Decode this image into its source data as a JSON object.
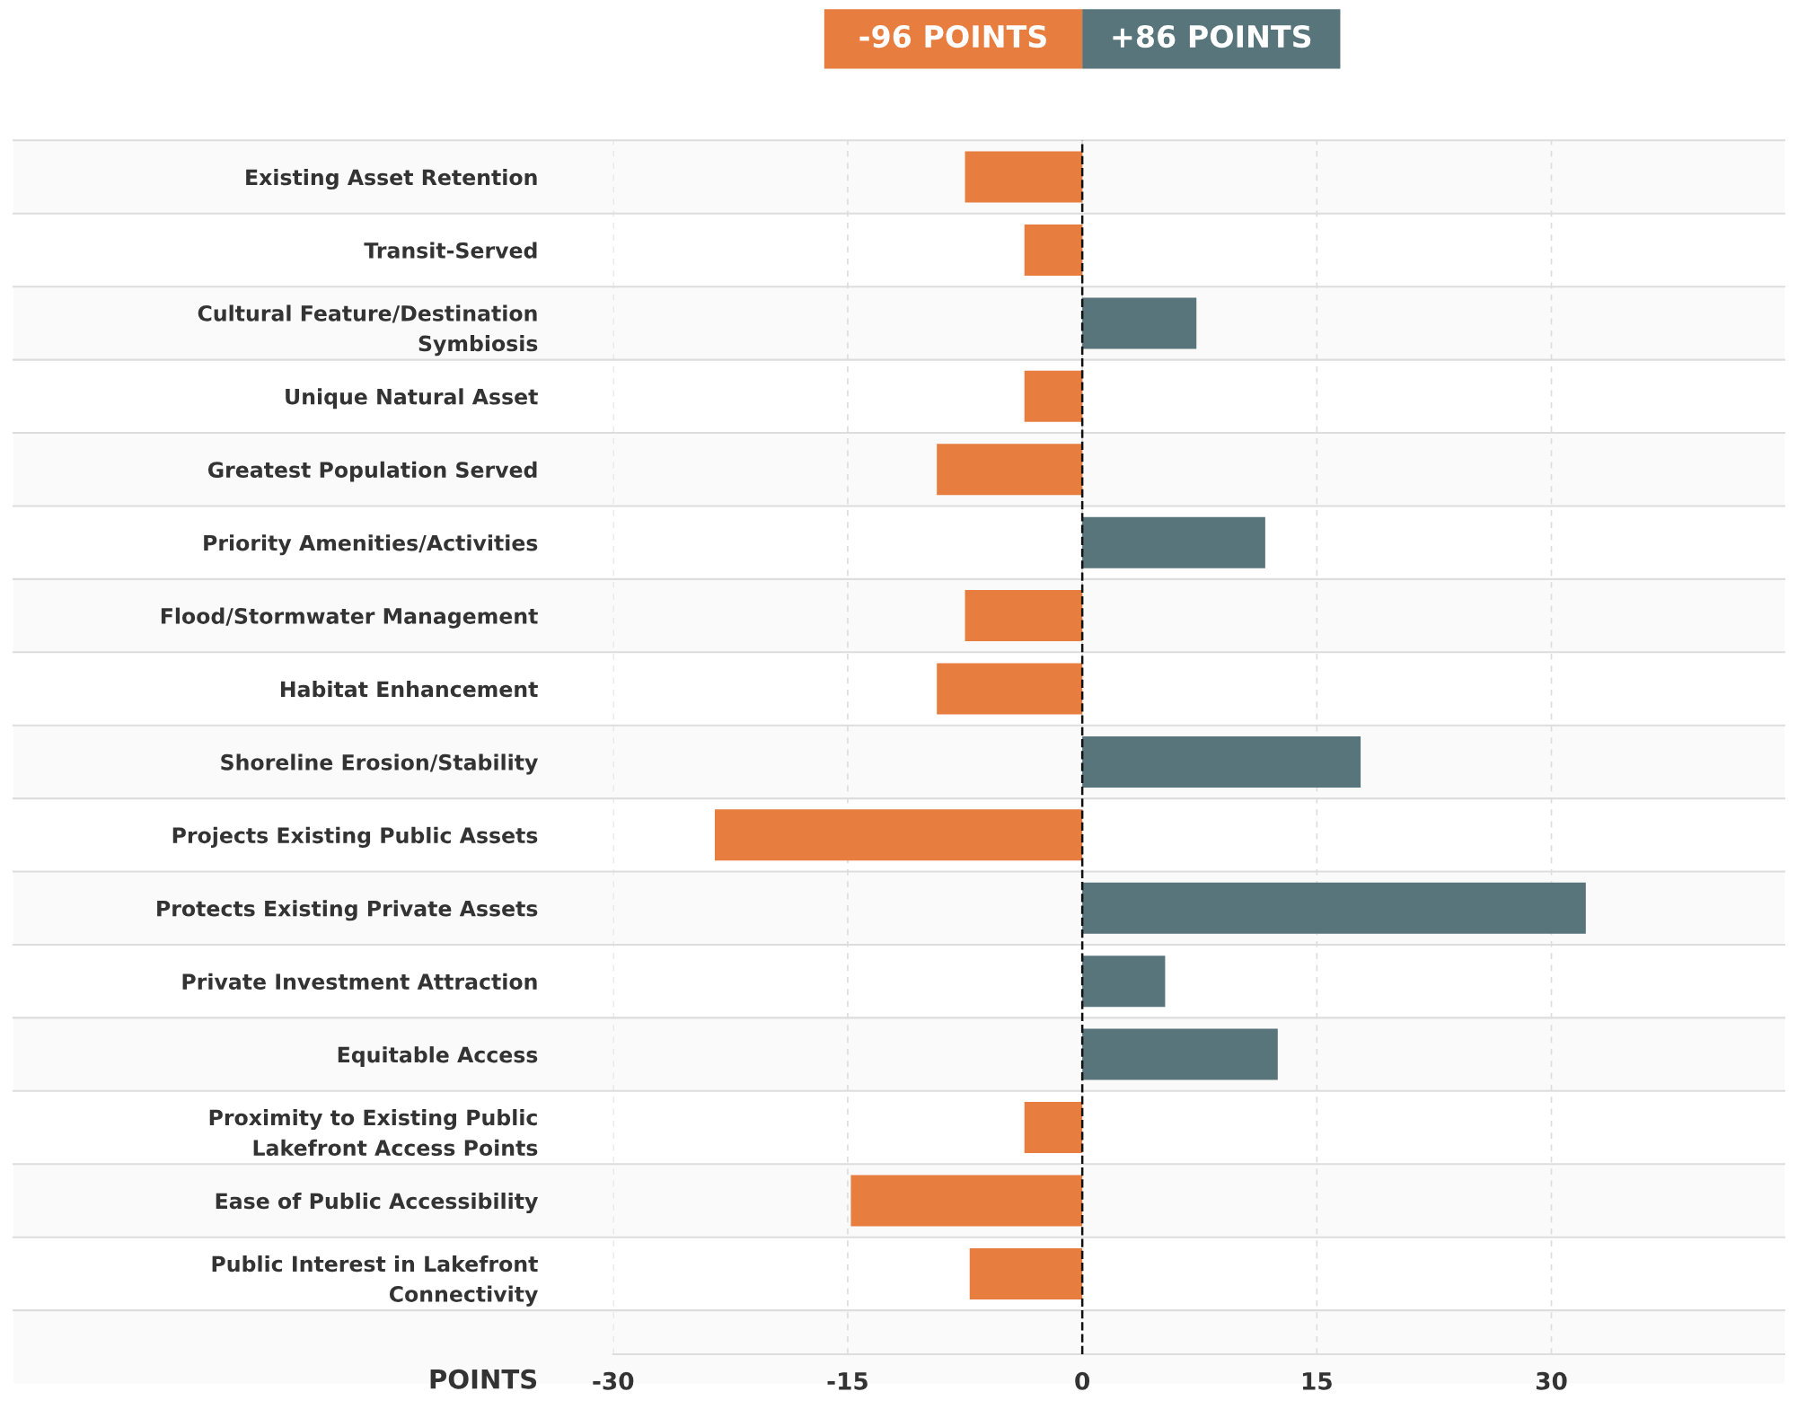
{
  "chart_data": {
    "type": "bar",
    "orientation": "horizontal",
    "categories": [
      "Existing Asset Retention",
      "Transit-Served",
      "Cultural Feature/Destination\nSymbiosis",
      "Unique Natural Asset",
      "Greatest Population Served",
      "Priority Amenities/Activities",
      "Flood/Stormwater Management",
      "Habitat Enhancement",
      "Shoreline Erosion/Stability",
      "Projects Existing Public Assets",
      "Protects Existing Private Assets",
      "Private Investment Attraction",
      "Equitable Access",
      "Proximity to Existing Public\nLakefront Access Points",
      "Ease of Public Accessibility",
      "Public Interest in Lakefront\nConnectivity"
    ],
    "values": [
      -7.5,
      -3.7,
      7.3,
      -3.7,
      -9.3,
      11.7,
      -7.5,
      -9.3,
      17.8,
      -23.5,
      32.2,
      5.3,
      12.5,
      -3.7,
      -14.8,
      -7.2
    ],
    "colors": [
      "#e87d40",
      "#e87d40",
      "#59757c",
      "#e87d40",
      "#e87d40",
      "#59757c",
      "#e87d40",
      "#e87d40",
      "#59757c",
      "#e87d40",
      "#59757c",
      "#59757c",
      "#59757c",
      "#e87d40",
      "#e87d40",
      "#e87d40"
    ],
    "xlabel": "POINTS",
    "xlim": [
      -30,
      44.9
    ],
    "xticks": [
      -30,
      -15,
      0,
      15,
      30
    ],
    "grid": "x",
    "ref_lines": [
      {
        "axis": "x",
        "value": 0,
        "color": "#111111",
        "line_style": "dashed"
      }
    ],
    "annotations": [
      "-96 POINTS",
      "+86 POINTS"
    ]
  }
}
